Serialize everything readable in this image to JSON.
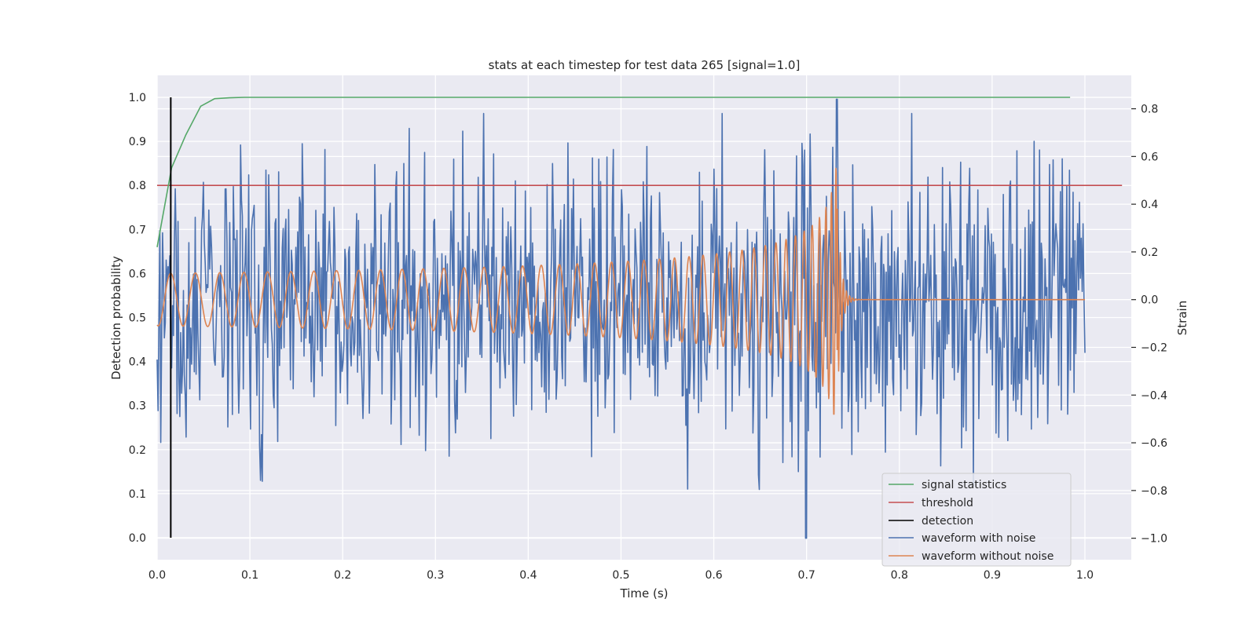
{
  "chart_data": {
    "type": "line",
    "title": "stats at each timestep for test data 265 [signal=1.0]",
    "xlabel": "Time (s)",
    "ylabel_left": "Detection probability",
    "ylabel_right": "Strain",
    "xlim": [
      0.0,
      1.05
    ],
    "ylim_left": [
      -0.05,
      1.05
    ],
    "ylim_right": [
      -1.09,
      0.94
    ],
    "x_ticks": [
      "0.0",
      "0.1",
      "0.2",
      "0.3",
      "0.4",
      "0.5",
      "0.6",
      "0.7",
      "0.8",
      "0.9",
      "1.0"
    ],
    "y_left_ticks": [
      "0.0",
      "0.1",
      "0.2",
      "0.3",
      "0.4",
      "0.5",
      "0.6",
      "0.7",
      "0.8",
      "0.9",
      "1.0"
    ],
    "y_right_ticks": [
      "−1.0",
      "−0.8",
      "−0.6",
      "−0.4",
      "−0.2",
      "0.0",
      "0.2",
      "0.4",
      "0.6",
      "0.8"
    ],
    "grid": true,
    "legend_position": "lower-right",
    "series": [
      {
        "name": "signal statistics",
        "axis": "left",
        "color": "#55a868",
        "x": [
          0.0,
          0.0156,
          0.031,
          0.047,
          0.062,
          0.078,
          0.094,
          0.125,
          0.2,
          0.3,
          0.4,
          0.5,
          0.6,
          0.7,
          0.8,
          0.9,
          0.984
        ],
        "y": [
          0.66,
          0.84,
          0.915,
          0.98,
          0.997,
          0.999,
          1.0,
          1.0,
          1.0,
          1.0,
          1.0,
          1.0,
          1.0,
          1.0,
          1.0,
          1.0,
          1.0
        ]
      },
      {
        "name": "threshold",
        "axis": "left",
        "color": "#c44e52",
        "x": [
          0.0,
          1.04
        ],
        "y": [
          0.8,
          0.8
        ]
      },
      {
        "name": "detection",
        "axis": "left",
        "color": "#000000",
        "x": [
          0.0147,
          0.0147
        ],
        "y": [
          0.0,
          1.0
        ]
      },
      {
        "name": "waveform with noise",
        "axis": "right",
        "color": "#4c72b0",
        "x_range": [
          0.0,
          1.0
        ],
        "amplitude_range": [
          -1.0,
          0.84
        ],
        "generated": true
      },
      {
        "name": "waveform without noise",
        "axis": "right",
        "color": "#dd8452",
        "x_range": [
          0.0,
          1.0
        ],
        "amplitude_range": [
          -0.48,
          0.58
        ],
        "merger_time": 0.733,
        "generated": true
      }
    ]
  },
  "legend": {
    "items": [
      {
        "label": "signal statistics",
        "color": "#55a868"
      },
      {
        "label": "threshold",
        "color": "#c44e52"
      },
      {
        "label": "detection",
        "color": "#000000"
      },
      {
        "label": "waveform with noise",
        "color": "#4c72b0"
      },
      {
        "label": "waveform without noise",
        "color": "#dd8452"
      }
    ]
  }
}
